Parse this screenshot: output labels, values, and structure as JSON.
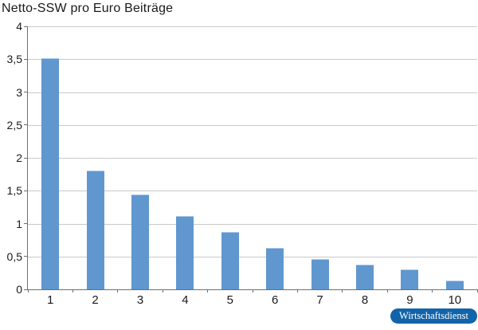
{
  "title": "Netto-SSW pro Euro Beiträge",
  "badge": {
    "label": "Wirtschaftsdienst"
  },
  "colors": {
    "bar": "#6097cf",
    "gridline": "#c9c9c9",
    "axis": "#6e6e6e",
    "badge_bg": "#1264aa",
    "badge_text": "#ffffff",
    "text": "#1a1a1a"
  },
  "chart_data": {
    "type": "bar",
    "title": "Netto-SSW pro Euro Beiträge",
    "categories": [
      "1",
      "2",
      "3",
      "4",
      "5",
      "6",
      "7",
      "8",
      "9",
      "10"
    ],
    "values": [
      3.52,
      1.81,
      1.44,
      1.12,
      0.87,
      0.63,
      0.46,
      0.37,
      0.3,
      0.13
    ],
    "xlabel": "",
    "ylabel": "",
    "ylim": [
      0,
      4
    ],
    "ytick_step": 0.5,
    "ytick_labels": [
      "0",
      "0,5",
      "1",
      "1,5",
      "2",
      "2,5",
      "3",
      "3,5",
      "4"
    ],
    "grid": true,
    "legend": false,
    "bar_color": "#6097cf"
  }
}
